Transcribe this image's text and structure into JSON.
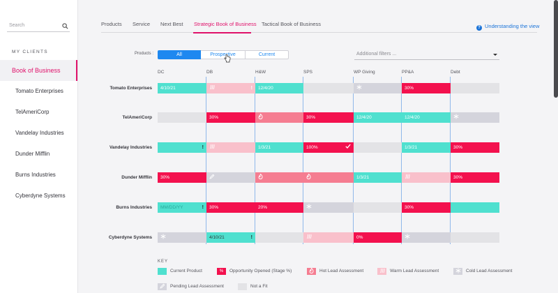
{
  "colors": {
    "current": "#4fe0cf",
    "opportunity": "#f3114e",
    "hot": "#f57d91",
    "warm": "#f9c0cb",
    "cold": "#d4d4dc",
    "pending": "#d4d4dc",
    "not_fit": "#e3e3e6",
    "accent": "#e0116a",
    "blue": "#1e88f0"
  },
  "sidebar": {
    "search_placeholder": "Search",
    "section_label": "MY CLIENTS",
    "items": [
      {
        "label": "Book of Business",
        "active": true
      },
      {
        "label": "Tomato Enterprises"
      },
      {
        "label": "TelAmeriCorp"
      },
      {
        "label": "Vandelay Industries"
      },
      {
        "label": "Dunder Mifflin"
      },
      {
        "label": "Burns Industries"
      },
      {
        "label": "Cyberdyne Systems"
      }
    ]
  },
  "tabs": [
    {
      "label": "Products"
    },
    {
      "label": "Service"
    },
    {
      "label": "Next Best"
    },
    {
      "label": "Strategic Book of Business",
      "active": true
    },
    {
      "label": "Tactical Book of Business"
    }
  ],
  "help_link": "Understanding the view",
  "filters": {
    "products_label": "Products :",
    "segments": [
      "All",
      "Prospective",
      "Current"
    ],
    "selected": "All",
    "additional_placeholder": "Additional filters ..."
  },
  "grid": {
    "columns": [
      "DC",
      "DB",
      "H&W",
      "SPS",
      "WP Giving",
      "PP&A",
      "Debt"
    ],
    "rows": [
      {
        "label": "Tomato Enterprises",
        "cells": [
          {
            "type": "current",
            "text": "4/10/21"
          },
          {
            "type": "warm",
            "icon": "warm-icon",
            "bang": true
          },
          {
            "type": "current",
            "text": "12/4/20"
          },
          {
            "type": "not_fit"
          },
          {
            "type": "cold",
            "icon": "cold-icon"
          },
          {
            "type": "opportunity",
            "text": "30%"
          },
          {
            "type": "not_fit"
          }
        ]
      },
      {
        "label": "TelAmeriCorp",
        "cells": [
          {
            "type": "not_fit"
          },
          {
            "type": "opportunity",
            "text": "30%"
          },
          {
            "type": "hot",
            "icon": "hot-icon"
          },
          {
            "type": "opportunity",
            "text": "30%"
          },
          {
            "type": "current",
            "text": "12/4/20"
          },
          {
            "type": "current",
            "text": "12/4/20"
          },
          {
            "type": "cold",
            "icon": "cold-icon"
          }
        ]
      },
      {
        "label": "Vandelay Industries",
        "cells": [
          {
            "type": "current",
            "bang": true
          },
          {
            "type": "warm",
            "icon": "warm-icon"
          },
          {
            "type": "current",
            "text": "1/3/21"
          },
          {
            "type": "opportunity",
            "text": "100%",
            "check": true
          },
          {
            "type": "not_fit"
          },
          {
            "type": "current",
            "text": "1/3/21"
          },
          {
            "type": "opportunity",
            "text": "30%"
          }
        ]
      },
      {
        "label": "Dunder Mifflin",
        "cells": [
          {
            "type": "opportunity",
            "text": "30%"
          },
          {
            "type": "pending",
            "icon": "pending-icon"
          },
          {
            "type": "hot",
            "icon": "hot-icon"
          },
          {
            "type": "hot",
            "icon": "hot-icon"
          },
          {
            "type": "current",
            "text": "1/3/21"
          },
          {
            "type": "warm",
            "icon": "warm-icon"
          },
          {
            "type": "opportunity",
            "text": "30%"
          }
        ]
      },
      {
        "label": "Burns Industries",
        "cells": [
          {
            "type": "current",
            "text": "MM/DD/YY",
            "placeholder": true,
            "bang": true
          },
          {
            "type": "opportunity",
            "text": "30%"
          },
          {
            "type": "opportunity",
            "text": "20%"
          },
          {
            "type": "cold",
            "icon": "cold-icon"
          },
          {
            "type": "not_fit"
          },
          {
            "type": "opportunity",
            "text": "30%"
          },
          {
            "type": "current"
          }
        ]
      },
      {
        "label": "Cyberdyne Systems",
        "cells": [
          {
            "type": "cold",
            "icon": "cold-icon"
          },
          {
            "type": "current",
            "text": "4/10/21",
            "dark": true,
            "bang": true
          },
          {
            "type": "not_fit"
          },
          {
            "type": "warm",
            "icon": "warm-icon"
          },
          {
            "type": "opportunity",
            "text": "0%"
          },
          {
            "type": "cold",
            "icon": "cold-icon"
          },
          {
            "type": "not_fit"
          }
        ]
      }
    ]
  },
  "key": {
    "title": "KEY",
    "items": [
      {
        "type": "current",
        "label": "Current Product"
      },
      {
        "type": "opportunity",
        "label": "Opportunity Opened (Stage %)",
        "glyph": "%"
      },
      {
        "type": "hot",
        "label": "Hot Lead Assessment",
        "icon": "hot-icon"
      },
      {
        "type": "warm",
        "label": "Warm Lead Assessment",
        "icon": "warm-icon"
      },
      {
        "type": "cold",
        "label": "Cold Lead Assessment",
        "icon": "cold-icon"
      },
      {
        "type": "pending",
        "label": "Pending Lead Assessment",
        "icon": "pending-icon"
      },
      {
        "type": "not_fit",
        "label": "Not a Fit"
      }
    ]
  }
}
